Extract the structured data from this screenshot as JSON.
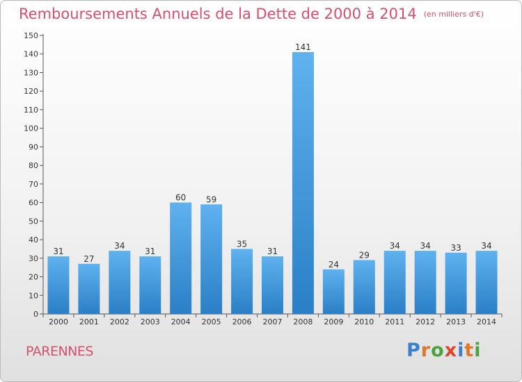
{
  "header": {
    "title": "Remboursements Annuels de la Dette de 2000 à 2014",
    "unit": "(en milliers d'€)"
  },
  "footer": {
    "city": "PARENNES",
    "logo": "Proxiti"
  },
  "colors": {
    "title": "#d64f6c",
    "bar_top": "#5fb2ee",
    "bar_bottom": "#2a7fc6",
    "logo": [
      "#3a7fd0",
      "#e0772a",
      "#4aa43c",
      "#e0452a",
      "#3a7fd0",
      "#e0772a",
      "#4aa43c"
    ]
  },
  "chart_data": {
    "type": "bar",
    "categories": [
      "2000",
      "2001",
      "2002",
      "2003",
      "2004",
      "2005",
      "2006",
      "2007",
      "2008",
      "2009",
      "2010",
      "2011",
      "2012",
      "2013",
      "2014"
    ],
    "values": [
      31,
      27,
      34,
      31,
      60,
      59,
      35,
      31,
      141,
      24,
      29,
      34,
      34,
      33,
      34
    ],
    "ylim": [
      0,
      150
    ],
    "yticks": [
      0,
      10,
      20,
      30,
      40,
      50,
      60,
      70,
      80,
      90,
      100,
      110,
      120,
      130,
      140,
      150
    ],
    "grid": false,
    "xlabel": "",
    "ylabel": ""
  }
}
